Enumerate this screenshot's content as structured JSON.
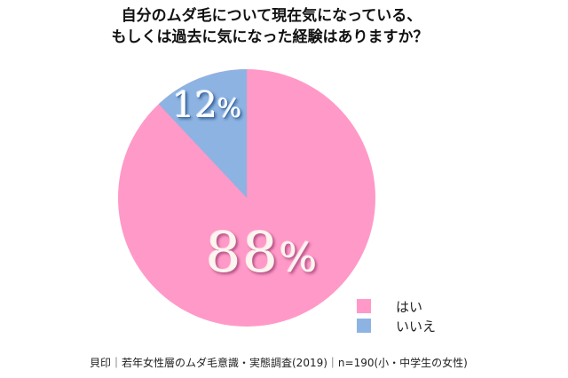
{
  "chart_data": {
    "type": "pie",
    "title": "自分のムダ毛について現在気になっている、もしくは過去に気になった経験はありますか？",
    "title_lines": [
      "自分のムダ毛について現在気になっている、",
      "もしくは過去に気になった経験はありますか？"
    ],
    "categories": [
      "はい",
      "いいえ"
    ],
    "values": [
      88,
      12
    ],
    "unit": "%",
    "colors": [
      "#ff99c8",
      "#8db3e2"
    ],
    "data_labels": [
      "88",
      "12"
    ],
    "legend_position": "bottom-right",
    "source": "貝印｜若年女性層のムダ毛意識・実態調査(2019)｜n=190(小・中学生の女性)"
  },
  "labels": {
    "yes_pct": "88",
    "no_pct": "12",
    "pct_sign": "%"
  },
  "legend": {
    "items": [
      {
        "label": "はい",
        "color": "#ff99c8"
      },
      {
        "label": "いいえ",
        "color": "#8db3e2"
      }
    ]
  }
}
